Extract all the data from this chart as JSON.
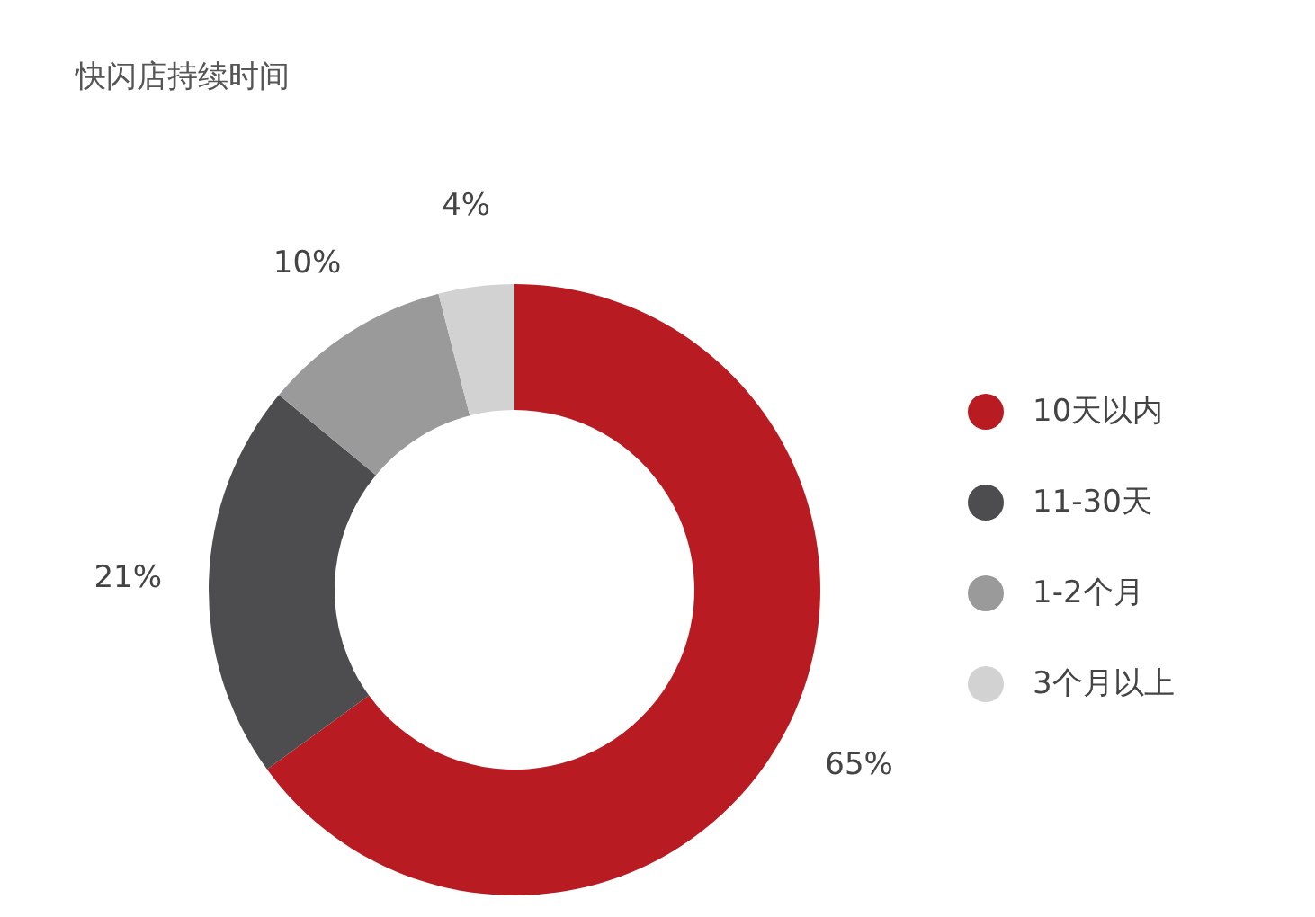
{
  "chart_data": {
    "type": "donut",
    "title": "快闪店持续时间",
    "categories": [
      "10天以内",
      "11-30天",
      "1-2个月",
      "3个月以上"
    ],
    "values": [
      65,
      21,
      10,
      4
    ],
    "colors": [
      "#b81c22",
      "#4d4d4f",
      "#9a9a9a",
      "#d2d2d2"
    ],
    "value_labels": [
      "65%",
      "21%",
      "10%",
      "4%"
    ],
    "legend": "right"
  }
}
